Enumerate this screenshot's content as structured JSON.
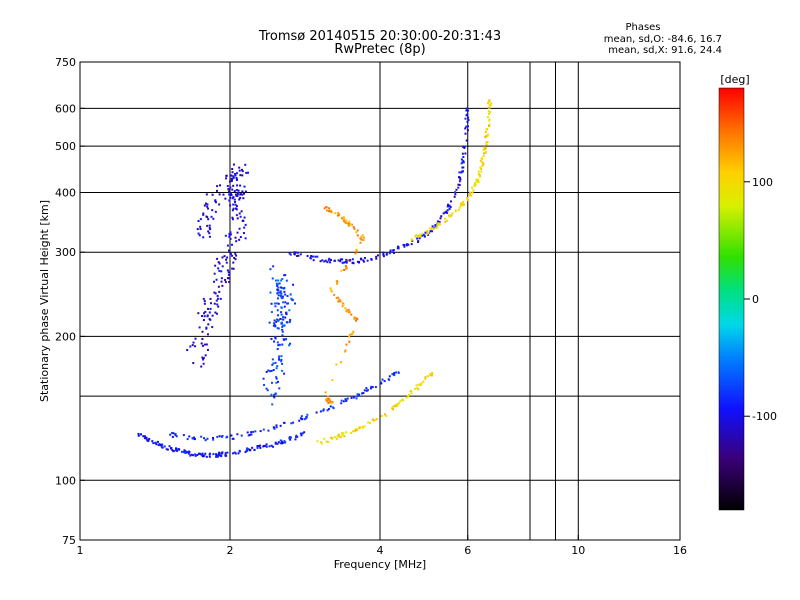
{
  "chart_data": {
    "type": "scatter",
    "title": "Tromsø 20140515 20:30:00-20:31:43",
    "subtitle": "RwPretec (8p)",
    "xlabel": "Frequency [MHz]",
    "ylabel": "Stationary phase Virtual Height [km]",
    "x_scale": "log",
    "y_scale": "log",
    "xlim": [
      1,
      16
    ],
    "ylim": [
      75,
      750
    ],
    "x_ticks": [
      "1",
      "2",
      "4",
      "6",
      "10",
      "16"
    ],
    "y_ticks": [
      "75",
      "100",
      "200",
      "300",
      "400",
      "500",
      "600",
      "750"
    ],
    "phase_stats": {
      "header": "Phases",
      "line_o": "mean, sd,O: -84.6, 16.7",
      "line_x": "mean, sd,X:  91.6, 24.4"
    },
    "colorbar": {
      "label": "[deg]",
      "range": [
        -180,
        180
      ],
      "ticks": [
        "100",
        "0",
        "-100"
      ]
    },
    "series": [
      {
        "trace": "O-mode E/F1 low trace",
        "phase_deg": -95,
        "points": [
          [
            1.3,
            125
          ],
          [
            1.4,
            120
          ],
          [
            1.5,
            117
          ],
          [
            1.6,
            115
          ],
          [
            1.7,
            113
          ],
          [
            1.8,
            113
          ],
          [
            1.9,
            113
          ],
          [
            2.0,
            114
          ],
          [
            2.2,
            116
          ],
          [
            2.4,
            118
          ],
          [
            2.6,
            121
          ],
          [
            2.8,
            125
          ]
        ]
      },
      {
        "trace": "O-mode lower F rise",
        "phase_deg": -85,
        "points": [
          [
            1.5,
            125
          ],
          [
            1.7,
            122
          ],
          [
            2.0,
            123
          ],
          [
            2.4,
            128
          ],
          [
            2.8,
            135
          ],
          [
            3.2,
            142
          ],
          [
            3.6,
            150
          ],
          [
            4.0,
            160
          ],
          [
            4.4,
            170
          ]
        ]
      },
      {
        "trace": "O-mode F2 trace",
        "phase_deg": -100,
        "points": [
          [
            2.6,
            300
          ],
          [
            2.9,
            292
          ],
          [
            3.2,
            288
          ],
          [
            3.5,
            287
          ],
          [
            3.8,
            290
          ],
          [
            4.2,
            300
          ],
          [
            4.6,
            312
          ],
          [
            5.0,
            328
          ],
          [
            5.4,
            360
          ],
          [
            5.7,
            400
          ],
          [
            5.85,
            450
          ],
          [
            5.95,
            520
          ],
          [
            6.0,
            600
          ]
        ]
      },
      {
        "trace": "X-mode F2 trace",
        "phase_deg": 100,
        "points": [
          [
            4.6,
            320
          ],
          [
            5.0,
            332
          ],
          [
            5.4,
            348
          ],
          [
            5.8,
            375
          ],
          [
            6.1,
            400
          ],
          [
            6.3,
            430
          ],
          [
            6.45,
            470
          ],
          [
            6.55,
            520
          ],
          [
            6.6,
            580
          ],
          [
            6.65,
            630
          ]
        ]
      },
      {
        "trace": "X-mode lower F trace",
        "phase_deg": 100,
        "points": [
          [
            3.0,
            120
          ],
          [
            3.3,
            123
          ],
          [
            3.6,
            128
          ],
          [
            4.0,
            135
          ],
          [
            4.4,
            145
          ],
          [
            4.8,
            158
          ],
          [
            5.1,
            168
          ]
        ]
      },
      {
        "trace": "Mixed-phase F region echoes",
        "phase_deg": 130,
        "points": [
          [
            3.1,
            370
          ],
          [
            3.3,
            360
          ],
          [
            3.5,
            340
          ],
          [
            3.7,
            320
          ],
          [
            3.2,
            250
          ],
          [
            3.4,
            230
          ],
          [
            3.6,
            215
          ],
          [
            3.1,
            150
          ],
          [
            3.2,
            145
          ]
        ]
      },
      {
        "trace": "Spread-F cluster near 2 MHz",
        "phase_deg": -110,
        "points": [
          [
            1.7,
            180
          ],
          [
            1.8,
            220
          ],
          [
            1.9,
            260
          ],
          [
            2.0,
            300
          ],
          [
            2.1,
            350
          ],
          [
            2.05,
            400
          ],
          [
            2.1,
            450
          ],
          [
            1.85,
            380
          ],
          [
            1.75,
            320
          ]
        ]
      },
      {
        "trace": "Scattered echoes 2.5 MHz",
        "phase_deg": -75,
        "points": [
          [
            2.4,
            150
          ],
          [
            2.5,
            180
          ],
          [
            2.55,
            210
          ],
          [
            2.6,
            240
          ],
          [
            2.5,
            270
          ],
          [
            2.45,
            200
          ]
        ]
      }
    ]
  }
}
